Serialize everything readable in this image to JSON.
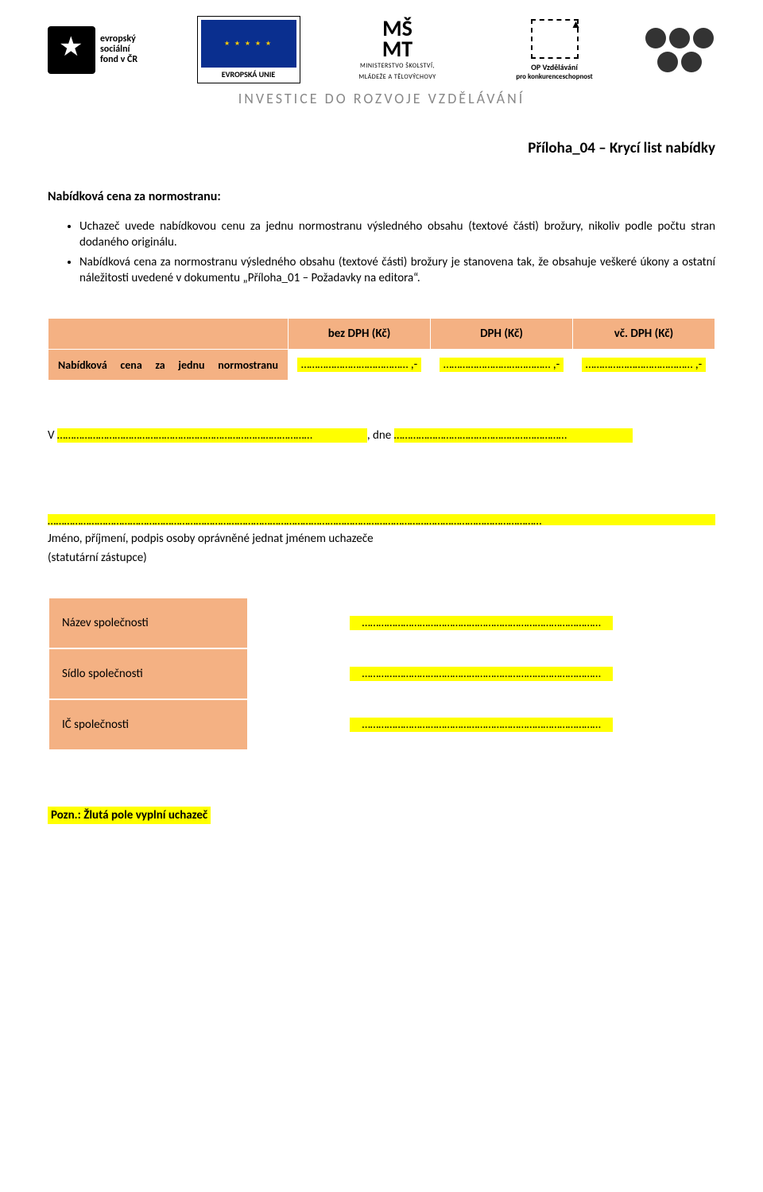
{
  "header": {
    "esf_lines": "evropský\nsociální\nfond v ČR",
    "eu_caption": "EVROPSKÁ UNIE",
    "msmt_big1": "MŠ",
    "msmt_big2": "MT",
    "msmt_line1": "MINISTERSTVO ŠKOLSTVÍ,",
    "msmt_line2": "MLÁDEŽE A TĚLOVÝCHOVY",
    "op_line1": "OP Vzdělávání",
    "op_line2": "pro konkurenceschopnost",
    "investment": "INVESTICE DO ROZVOJE VZDĚLÁVÁNÍ"
  },
  "title": "Příloha_04 – Krycí list nabídky",
  "section_heading": "Nabídková cena za normostranu:",
  "bullets": [
    "Uchazeč uvede nabídkovou cenu za jednu normostranu výsledného obsahu (textové části) brožury, nikoliv podle počtu stran dodaného originálu.",
    "Nabídková cena za normostranu výsledného obsahu (textové části) brožury je stanovena tak, že obsahuje veškeré úkony a ostatní náležitosti uvedené v dokumentu „Příloha_01 – Požadavky na editora“."
  ],
  "price_table": {
    "col_bez": "bez DPH (Kč)",
    "col_dph": "DPH (Kč)",
    "col_vc": "vč. DPH (Kč)",
    "row_label": "Nabídková cena za jednu normostranu",
    "placeholder": "………………………………… ,-"
  },
  "place_prefix": "V ",
  "place_placeholder": "…………………………………………………………………………………",
  "date_prefix": ", dne ",
  "date_placeholder": "………………………………………………………",
  "sig_line_placeholder": "………………………………………………………………………………………………………………………………………………………………",
  "sig_caption": "Jméno, příjmení, podpis osoby oprávněné jednat jménem uchazeče",
  "sig_sub": "(statutární zástupce)",
  "company_table": {
    "name_label": "Název společnosti",
    "seat_label": "Sídlo společnosti",
    "ic_label": "IČ společnosti",
    "placeholder": "……………………………………………………………………………"
  },
  "note": "Pozn.: Žlutá pole vyplní uchazeč"
}
